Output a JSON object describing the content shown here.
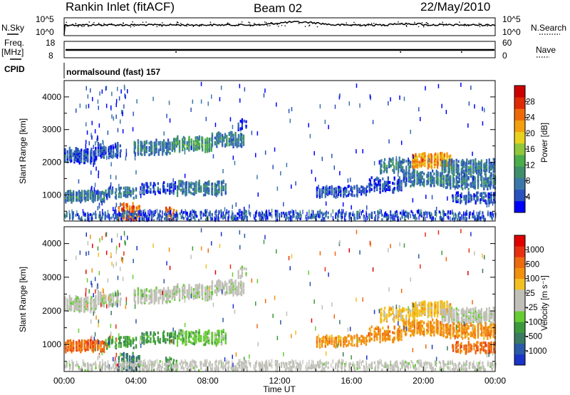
{
  "header": {
    "station": "Rankin Inlet (fitACF)",
    "beam": "Beam 02",
    "date": "22/May/2010"
  },
  "top_panels": {
    "nsky_label": "N.Sky",
    "nsearch_label": "N.Search",
    "noise_left_ticks": [
      "10^5",
      "10^0"
    ],
    "noise_right_ticks": [
      "10^5",
      "10^0"
    ],
    "freq_label": "Freq.",
    "freq_unit": "[MHz]",
    "freq_ticks": [
      "18",
      "8"
    ],
    "nave_label": "Nave",
    "nave_ticks": [
      "60",
      "0"
    ],
    "cpid_label": "CPID",
    "cpid_text": "normalsound (fast) 157"
  },
  "chart_data": [
    {
      "type": "heatmap",
      "name": "power",
      "ylabel": "Slant Range [km]",
      "ylim": [
        200,
        4500
      ],
      "yticks": [
        "4000",
        "3000",
        "2000",
        "1000"
      ],
      "xlim": [
        0,
        24
      ],
      "colorbar": {
        "label": "Power [dB]",
        "ticks": [
          "28",
          "24",
          "20",
          "16",
          "12",
          "8",
          "4"
        ],
        "range": [
          0,
          32
        ],
        "colors": [
          "#0000ff",
          "#2a52be",
          "#3b78a8",
          "#3e8f6a",
          "#4cae4a",
          "#90c83a",
          "#e8d21e",
          "#f2a010",
          "#ee6a08",
          "#e02a04",
          "#cc0000"
        ]
      }
    },
    {
      "type": "heatmap",
      "name": "velocity",
      "ylabel": "Slant Range [km]",
      "ylim": [
        200,
        4500
      ],
      "yticks": [
        "4000",
        "3000",
        "2000",
        "1000"
      ],
      "xlim": [
        0,
        24
      ],
      "colorbar": {
        "label": "Velocity [m s⁻¹]",
        "ticks": [
          "1000",
          "500",
          "100",
          "25",
          "-25",
          "-100",
          "-500",
          "-1000"
        ],
        "colors": [
          "#1a33c8",
          "#2a5aa8",
          "#3a7a60",
          "#3c9a3c",
          "#66cc33",
          "#c0c0b8",
          "#c0c0b8",
          "#f2c020",
          "#f29010",
          "#ee6a10",
          "#e83010",
          "#e00000"
        ]
      }
    }
  ],
  "x_axis": {
    "ticks": [
      "00:00",
      "04:00",
      "08:00",
      "12:00",
      "16:00",
      "20:00",
      "00:00"
    ],
    "label": "Time UT"
  }
}
